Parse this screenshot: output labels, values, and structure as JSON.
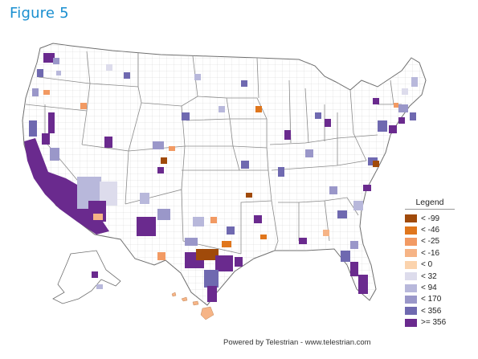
{
  "title": "Figure 5",
  "legend": {
    "title": "Legend",
    "items": [
      {
        "label": "< -99",
        "color": "#a04a0a"
      },
      {
        "label": "< -46",
        "color": "#e0761c"
      },
      {
        "label": "< -25",
        "color": "#f29a63"
      },
      {
        "label": "< -16",
        "color": "#f6b486"
      },
      {
        "label": "< 0",
        "color": "#fbd3ad"
      },
      {
        "label": "< 32",
        "color": "#dddcec"
      },
      {
        "label": "< 94",
        "color": "#b8b8db"
      },
      {
        "label": "< 170",
        "color": "#9a97c9"
      },
      {
        "label": "< 356",
        "color": "#6f69b0"
      },
      {
        "label": ">= 356",
        "color": "#6a2a8e"
      }
    ]
  },
  "footer": "Powered by Telestrian - www.telestrian.com"
}
